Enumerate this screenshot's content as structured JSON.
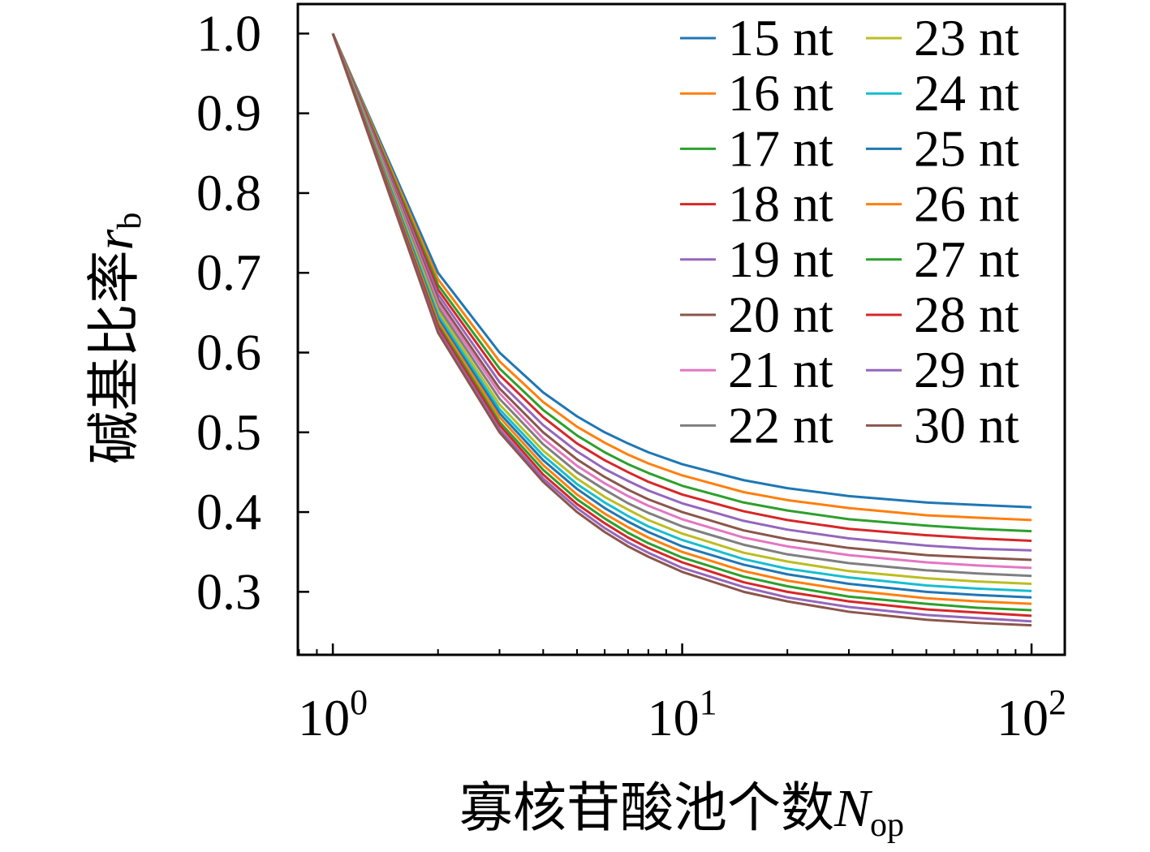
{
  "chart_data": {
    "type": "line",
    "xlabel": {
      "text": "寡核苷酸池个数",
      "symbol": "N",
      "sub": "op"
    },
    "ylabel": {
      "text": "碱基比率",
      "symbol": "r",
      "sub": "b"
    },
    "xscale": "log",
    "xlim": [
      0.794,
      124.5
    ],
    "ylim": [
      0.221,
      1.037
    ],
    "grid": false,
    "xticks": [
      {
        "value": 1,
        "base": "10",
        "exp": "0"
      },
      {
        "value": 10,
        "base": "10",
        "exp": "1"
      },
      {
        "value": 100,
        "base": "10",
        "exp": "2"
      }
    ],
    "yticks": [
      {
        "value": 1.0,
        "label": "1.0"
      },
      {
        "value": 0.9,
        "label": "0.9"
      },
      {
        "value": 0.8,
        "label": "0.8"
      },
      {
        "value": 0.7,
        "label": "0.7"
      },
      {
        "value": 0.6,
        "label": "0.6"
      },
      {
        "value": 0.5,
        "label": "0.5"
      },
      {
        "value": 0.4,
        "label": "0.4"
      },
      {
        "value": 0.3,
        "label": "0.3"
      }
    ],
    "legend": {
      "loc": "upper-right",
      "ncol": 2
    },
    "x": [
      1,
      2,
      3,
      4,
      5,
      6,
      7,
      8,
      10,
      15,
      20,
      30,
      50,
      70,
      100
    ],
    "series": [
      {
        "name": "15 nt",
        "color": "#1f77b4",
        "values": [
          1.0,
          0.7,
          0.6,
          0.55,
          0.52,
          0.5,
          0.486,
          0.475,
          0.46,
          0.44,
          0.43,
          0.42,
          0.412,
          0.409,
          0.406
        ]
      },
      {
        "name": "16 nt",
        "color": "#ff7f0e",
        "values": [
          1.0,
          0.692,
          0.589,
          0.538,
          0.507,
          0.487,
          0.472,
          0.461,
          0.446,
          0.425,
          0.415,
          0.405,
          0.396,
          0.393,
          0.39
        ]
      },
      {
        "name": "17 nt",
        "color": "#2ca02c",
        "values": [
          1.0,
          0.685,
          0.58,
          0.528,
          0.496,
          0.475,
          0.46,
          0.449,
          0.433,
          0.412,
          0.402,
          0.391,
          0.383,
          0.379,
          0.376
        ]
      },
      {
        "name": "18 nt",
        "color": "#d62728",
        "values": [
          1.0,
          0.679,
          0.572,
          0.519,
          0.486,
          0.465,
          0.45,
          0.438,
          0.422,
          0.401,
          0.39,
          0.379,
          0.371,
          0.367,
          0.364
        ]
      },
      {
        "name": "19 nt",
        "color": "#9467bd",
        "values": [
          1.0,
          0.673,
          0.563,
          0.509,
          0.476,
          0.454,
          0.439,
          0.427,
          0.411,
          0.389,
          0.378,
          0.367,
          0.358,
          0.354,
          0.352
        ]
      },
      {
        "name": "20 nt",
        "color": "#8c564b",
        "values": [
          1.0,
          0.667,
          0.555,
          0.5,
          0.466,
          0.444,
          0.428,
          0.416,
          0.4,
          0.377,
          0.366,
          0.355,
          0.346,
          0.343,
          0.34
        ]
      },
      {
        "name": "21 nt",
        "color": "#e377c2",
        "values": [
          1.0,
          0.662,
          0.549,
          0.492,
          0.458,
          0.436,
          0.42,
          0.408,
          0.391,
          0.368,
          0.357,
          0.346,
          0.337,
          0.333,
          0.33
        ]
      },
      {
        "name": "22 nt",
        "color": "#7f7f7f",
        "values": [
          1.0,
          0.657,
          0.542,
          0.485,
          0.45,
          0.428,
          0.411,
          0.399,
          0.382,
          0.359,
          0.347,
          0.336,
          0.327,
          0.323,
          0.32
        ]
      },
      {
        "name": "23 nt",
        "color": "#bcbd22",
        "values": [
          1.0,
          0.652,
          0.535,
          0.477,
          0.442,
          0.419,
          0.403,
          0.39,
          0.373,
          0.349,
          0.338,
          0.326,
          0.317,
          0.313,
          0.31
        ]
      },
      {
        "name": "24 nt",
        "color": "#17becf",
        "values": [
          1.0,
          0.647,
          0.529,
          0.471,
          0.435,
          0.412,
          0.395,
          0.382,
          0.365,
          0.341,
          0.329,
          0.318,
          0.308,
          0.304,
          0.301
        ]
      },
      {
        "name": "25 nt",
        "color": "#1f77b4",
        "values": [
          1.0,
          0.643,
          0.524,
          0.465,
          0.429,
          0.405,
          0.388,
          0.375,
          0.357,
          0.334,
          0.322,
          0.31,
          0.3,
          0.296,
          0.293
        ]
      },
      {
        "name": "26 nt",
        "color": "#ff7f0e",
        "values": [
          1.0,
          0.639,
          0.519,
          0.459,
          0.422,
          0.398,
          0.381,
          0.368,
          0.35,
          0.326,
          0.314,
          0.302,
          0.292,
          0.288,
          0.285
        ]
      },
      {
        "name": "27 nt",
        "color": "#2ca02c",
        "values": [
          1.0,
          0.635,
          0.513,
          0.453,
          0.416,
          0.392,
          0.374,
          0.361,
          0.343,
          0.319,
          0.307,
          0.294,
          0.285,
          0.28,
          0.277
        ]
      },
      {
        "name": "28 nt",
        "color": "#d62728",
        "values": [
          1.0,
          0.632,
          0.509,
          0.447,
          0.41,
          0.386,
          0.368,
          0.355,
          0.337,
          0.312,
          0.3,
          0.288,
          0.278,
          0.274,
          0.27
        ]
      },
      {
        "name": "29 nt",
        "color": "#9467bd",
        "values": [
          1.0,
          0.628,
          0.504,
          0.442,
          0.405,
          0.38,
          0.362,
          0.349,
          0.33,
          0.306,
          0.293,
          0.281,
          0.271,
          0.267,
          0.263
        ]
      },
      {
        "name": "30 nt",
        "color": "#8c564b",
        "values": [
          1.0,
          0.625,
          0.5,
          0.438,
          0.4,
          0.375,
          0.357,
          0.344,
          0.325,
          0.3,
          0.288,
          0.275,
          0.265,
          0.261,
          0.258
        ]
      }
    ]
  }
}
